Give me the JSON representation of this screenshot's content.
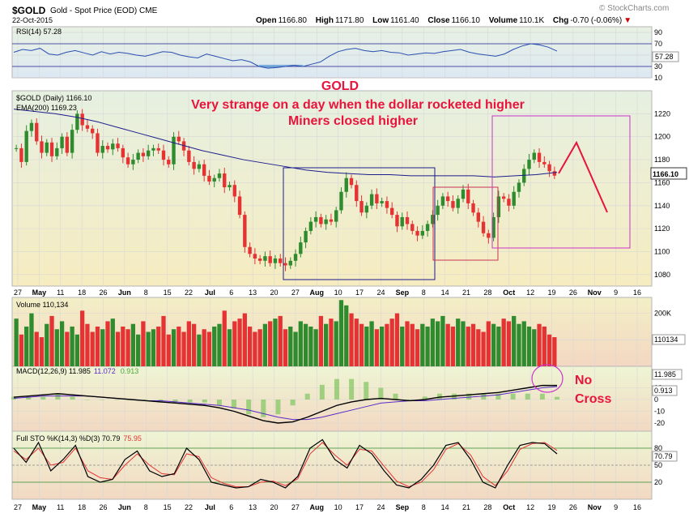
{
  "header": {
    "symbol": "$GOLD",
    "description": "Gold - Spot Price (EOD)",
    "exchange": "CME",
    "date": "22-Oct-2015",
    "brand": "© StockCharts.com",
    "open_label": "Open",
    "open": "1166.80",
    "high_label": "High",
    "high": "1171.80",
    "low_label": "Low",
    "low": "1161.40",
    "close_label": "Close",
    "close": "1166.10",
    "volume_label": "Volume",
    "volume": "110.1K",
    "chg_label": "Chg",
    "chg": "-0.70 (-0.06%)"
  },
  "annotations": {
    "title": "GOLD",
    "line1": "Very strange on a day when the dollar rocketed higher",
    "line2": "Miners closed higher",
    "macd_note_1": "No",
    "macd_note_2": "Cross"
  },
  "colors": {
    "up": "#2e8b2e",
    "down": "#e53333",
    "ema": "#1c1c8c",
    "annotation": "#e8143c",
    "box_blue": "#1c1c8c",
    "box_red": "#cc3355",
    "box_magenta": "#cc33cc"
  },
  "chart_data": [
    {
      "type": "line",
      "panel": "rsi",
      "legend": "RSI(14) 57.28",
      "last_value": "57.28",
      "ylim": [
        10,
        100
      ],
      "y_ticks": [
        "90",
        "70",
        "50",
        "30",
        "10"
      ],
      "values": [
        55,
        60,
        58,
        62,
        52,
        50,
        55,
        58,
        54,
        50,
        56,
        52,
        55,
        53,
        50,
        48,
        52,
        56,
        55,
        50,
        47,
        45,
        52,
        48,
        44,
        40,
        42,
        38,
        30,
        27,
        28,
        30,
        32,
        30,
        34,
        38,
        48,
        56,
        60,
        62,
        58,
        56,
        58,
        55,
        54,
        50,
        52,
        54,
        53,
        56,
        58,
        60,
        55,
        52,
        50,
        48,
        52,
        60,
        66,
        70,
        68,
        64,
        57
      ]
    },
    {
      "type": "candlestick",
      "panel": "price",
      "legend_main": "$GOLD (Daily) 1166.10",
      "legend_ema": "EMA(200) 1169.23",
      "last_value": "1166.10",
      "ylim": [
        1070,
        1240
      ],
      "y_ticks": [
        "1220",
        "1200",
        "1180",
        "1160",
        "1140",
        "1120",
        "1100",
        "1080"
      ],
      "x_labels": [
        "27",
        "May",
        "11",
        "18",
        "26",
        "Jun",
        "8",
        "15",
        "22",
        "Jul",
        "6",
        "13",
        "20",
        "27",
        "Aug",
        "10",
        "17",
        "24",
        "Sep",
        "8",
        "14",
        "21",
        "28",
        "Oct",
        "12",
        "19",
        "26",
        "Nov",
        "9",
        "16"
      ],
      "closes": [
        1190,
        1178,
        1205,
        1212,
        1196,
        1186,
        1195,
        1183,
        1190,
        1200,
        1186,
        1206,
        1220,
        1210,
        1207,
        1203,
        1186,
        1192,
        1189,
        1194,
        1190,
        1182,
        1176,
        1180,
        1186,
        1183,
        1188,
        1190,
        1188,
        1180,
        1176,
        1200,
        1196,
        1188,
        1178,
        1172,
        1176,
        1166,
        1161,
        1164,
        1168,
        1156,
        1158,
        1148,
        1132,
        1104,
        1098,
        1094,
        1092,
        1096,
        1090,
        1094,
        1090,
        1088,
        1092,
        1098,
        1108,
        1118,
        1126,
        1130,
        1124,
        1128,
        1126,
        1136,
        1152,
        1164,
        1158,
        1144,
        1134,
        1140,
        1150,
        1142,
        1144,
        1138,
        1132,
        1122,
        1130,
        1124,
        1118,
        1114,
        1118,
        1124,
        1132,
        1140,
        1148,
        1144,
        1138,
        1146,
        1154,
        1142,
        1134,
        1126,
        1116,
        1112,
        1130,
        1148,
        1146,
        1140,
        1152,
        1160,
        1172,
        1180,
        1186,
        1178,
        1176,
        1170,
        1166.1
      ],
      "ema200": [
        1224,
        1222,
        1220,
        1217,
        1213,
        1208,
        1203,
        1198,
        1193,
        1188,
        1184,
        1180,
        1177,
        1174,
        1171,
        1169,
        1168,
        1167,
        1167,
        1166,
        1166,
        1166,
        1166,
        1165,
        1166,
        1167,
        1169
      ],
      "boxes": [
        "Aug range box (blue)",
        "Sep range box (red)",
        "Oct projection box (magenta)"
      ]
    },
    {
      "type": "bar",
      "panel": "volume",
      "legend": "Volume 110,134",
      "last_value": "110134",
      "y_ticks": [
        "200K",
        "100K"
      ],
      "values": [
        180,
        120,
        150,
        200,
        130,
        110,
        160,
        190,
        140,
        170,
        130,
        150,
        120,
        210,
        160,
        130,
        150,
        140,
        170,
        180,
        130,
        150,
        140,
        160,
        120,
        170,
        130,
        140,
        150,
        190,
        120,
        140,
        150,
        130,
        170,
        160,
        120,
        140,
        130,
        150,
        160,
        210,
        140,
        170,
        180,
        200,
        150,
        130,
        140,
        160,
        170,
        180,
        190,
        140,
        150,
        130,
        170,
        160,
        150,
        140,
        190,
        160,
        180,
        170,
        250,
        230,
        200,
        180,
        160,
        150,
        170,
        140,
        150,
        160,
        180,
        200,
        150,
        170,
        160,
        140,
        160,
        150,
        180,
        170,
        190,
        160,
        150,
        180,
        170,
        150,
        160,
        140,
        130,
        170,
        160,
        150,
        180,
        170,
        190,
        160,
        170,
        150,
        140,
        160,
        150,
        120,
        110
      ]
    },
    {
      "type": "line",
      "panel": "macd",
      "legend_main": "MACD(12,26,9) 11.985",
      "legend_signal": "11.072",
      "legend_hist": "0.913",
      "last_macd": "11.985",
      "last_hist": "0.913",
      "y_ticks": [
        "10",
        "0",
        "-10",
        "-20"
      ],
      "macd": [
        2,
        3,
        4,
        5,
        4,
        3,
        2,
        1,
        0,
        -1,
        -2,
        -3,
        -4,
        -5,
        -7,
        -10,
        -14,
        -18,
        -20,
        -19,
        -15,
        -10,
        -5,
        -2,
        0,
        1,
        0,
        -1,
        0,
        2,
        3,
        4,
        5,
        6,
        8,
        10,
        12,
        11.985
      ],
      "signal": [
        1,
        2,
        3,
        3,
        3,
        3,
        2,
        1,
        0,
        -1,
        -1,
        -2,
        -3,
        -4,
        -5,
        -7,
        -9,
        -12,
        -15,
        -17,
        -17,
        -15,
        -12,
        -9,
        -6,
        -3,
        -2,
        -1,
        -1,
        0,
        1,
        2,
        3,
        4,
        6,
        8,
        10,
        11.072
      ]
    },
    {
      "type": "line",
      "panel": "stochastic",
      "legend_main": "Full STO %K(14,3) %D(3) 70.79",
      "legend_d": "75.95",
      "last_k": "70.79",
      "y_ticks": [
        "80",
        "50",
        "20"
      ],
      "k": [
        80,
        55,
        90,
        40,
        60,
        85,
        30,
        20,
        25,
        60,
        75,
        40,
        30,
        35,
        80,
        60,
        20,
        15,
        10,
        12,
        25,
        20,
        10,
        30,
        80,
        95,
        60,
        45,
        85,
        70,
        40,
        15,
        10,
        25,
        50,
        85,
        90,
        60,
        20,
        10,
        50,
        85,
        90,
        88,
        70
      ],
      "d": [
        75,
        60,
        80,
        50,
        55,
        80,
        40,
        28,
        25,
        50,
        70,
        50,
        35,
        33,
        70,
        65,
        28,
        18,
        12,
        12,
        20,
        22,
        14,
        26,
        70,
        90,
        68,
        50,
        78,
        75,
        48,
        22,
        12,
        20,
        42,
        78,
        88,
        68,
        30,
        14,
        40,
        78,
        88,
        90,
        76
      ]
    }
  ]
}
